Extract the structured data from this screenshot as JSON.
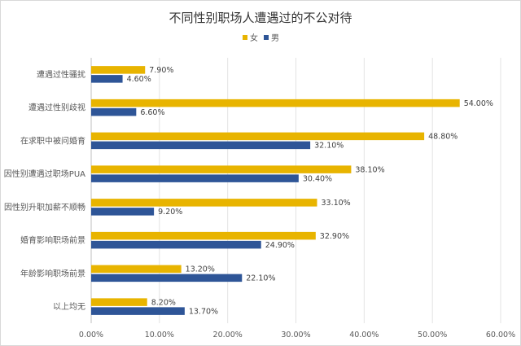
{
  "chart_data": {
    "type": "bar",
    "orientation": "horizontal",
    "title": "不同性别职场人遭遇过的不公对待",
    "categories": [
      "遭遇过性骚扰",
      "遭遇过性别歧视",
      "在求职中被问婚育",
      "因性别遭遇过职场PUA",
      "因性别升职加薪不顺畅",
      "婚育影响职场前景",
      "年龄影响职场前景",
      "以上均无"
    ],
    "series": [
      {
        "name": "女",
        "color": "#E8B400",
        "values": [
          7.9,
          54.0,
          48.8,
          38.1,
          33.1,
          32.9,
          13.2,
          8.2
        ],
        "labels": [
          "7.90%",
          "54.00%",
          "48.80%",
          "38.10%",
          "33.10%",
          "32.90%",
          "13.20%",
          "8.20%"
        ]
      },
      {
        "name": "男",
        "color": "#2E5597",
        "values": [
          4.6,
          6.6,
          32.1,
          30.4,
          9.2,
          24.9,
          22.1,
          13.7
        ],
        "labels": [
          "4.60%",
          "6.60%",
          "32.10%",
          "30.40%",
          "9.20%",
          "24.90%",
          "22.10%",
          "13.70%"
        ]
      }
    ],
    "xlim": [
      0,
      60
    ],
    "xticks": [
      0,
      10,
      20,
      30,
      40,
      50,
      60
    ],
    "xtick_labels": [
      "0.00%",
      "10.00%",
      "20.00%",
      "30.00%",
      "40.00%",
      "50.00%",
      "60.00%"
    ],
    "grid": true,
    "legend": "top-center"
  }
}
